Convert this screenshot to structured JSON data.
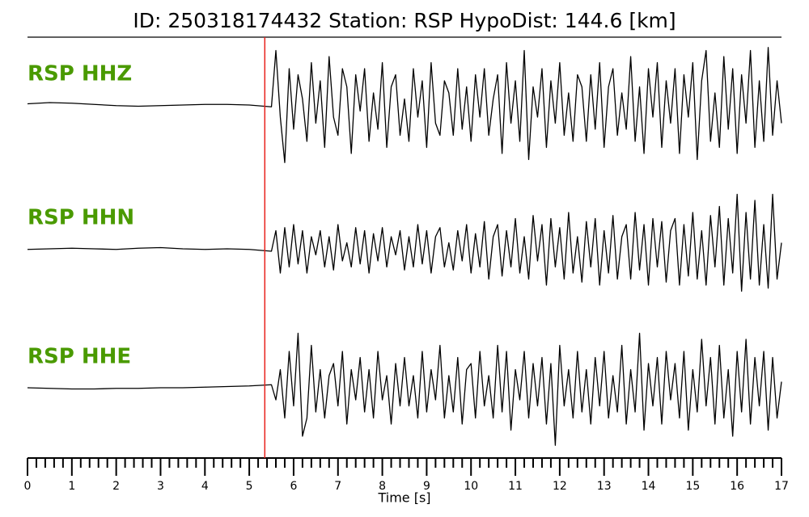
{
  "chart_data": {
    "type": "line",
    "title": "ID: 250318174432   Station: RSP   HypoDist:   144.6 [km]",
    "x_label": "Time [s]",
    "xlim": [
      0,
      17
    ],
    "xticks": [
      0,
      1,
      2,
      3,
      4,
      5,
      6,
      7,
      8,
      9,
      10,
      11,
      12,
      13,
      14,
      15,
      16,
      17
    ],
    "xminorticks": [
      0.2,
      0.4,
      0.6,
      0.8,
      1.2,
      1.4,
      1.6,
      1.8,
      2.2,
      2.4,
      2.6,
      2.8,
      3.2,
      3.4,
      3.6,
      3.8,
      4.2,
      4.4,
      4.6,
      4.8,
      5.2,
      5.4,
      5.6,
      5.8,
      6.2,
      6.4,
      6.6,
      6.8,
      7.2,
      7.4,
      7.6,
      7.8,
      8.2,
      8.4,
      8.6,
      8.8,
      9.2,
      9.4,
      9.6,
      9.8,
      10.2,
      10.4,
      10.6,
      10.8,
      11.2,
      11.4,
      11.6,
      11.8,
      12.2,
      12.4,
      12.6,
      12.8,
      13.2,
      13.4,
      13.6,
      13.8,
      14.2,
      14.4,
      14.6,
      14.8,
      15.2,
      15.4,
      15.6,
      15.8,
      16.2,
      16.4,
      16.6,
      16.8
    ],
    "ylim": [
      -1,
      1
    ],
    "marker": {
      "x": 5.35,
      "color": "#e8211c"
    },
    "x": [
      0,
      0.5,
      1,
      1.5,
      2,
      2.5,
      3,
      3.5,
      4,
      4.5,
      5,
      5.5,
      5.6,
      5.7,
      5.8,
      5.9,
      6.0,
      6.1,
      6.2,
      6.3,
      6.4,
      6.5,
      6.6,
      6.7,
      6.8,
      6.9,
      7.0,
      7.1,
      7.2,
      7.3,
      7.4,
      7.5,
      7.6,
      7.7,
      7.8,
      7.9,
      8.0,
      8.1,
      8.2,
      8.3,
      8.4,
      8.5,
      8.6,
      8.7,
      8.8,
      8.9,
      9.0,
      9.1,
      9.2,
      9.3,
      9.4,
      9.5,
      9.6,
      9.7,
      9.8,
      9.9,
      10.0,
      10.1,
      10.2,
      10.3,
      10.4,
      10.5,
      10.6,
      10.7,
      10.8,
      10.9,
      11.0,
      11.1,
      11.2,
      11.3,
      11.4,
      11.5,
      11.6,
      11.7,
      11.8,
      11.9,
      12.0,
      12.1,
      12.2,
      12.3,
      12.4,
      12.5,
      12.6,
      12.7,
      12.8,
      12.9,
      13.0,
      13.1,
      13.2,
      13.3,
      13.4,
      13.5,
      13.6,
      13.7,
      13.8,
      13.9,
      14.0,
      14.1,
      14.2,
      14.3,
      14.4,
      14.5,
      14.6,
      14.7,
      14.8,
      14.9,
      15.0,
      15.1,
      15.2,
      15.3,
      15.4,
      15.5,
      15.6,
      15.7,
      15.8,
      15.9,
      16.0,
      16.1,
      16.2,
      16.3,
      16.4,
      16.5,
      16.6,
      16.7,
      16.8,
      16.9,
      17.0
    ],
    "series": [
      {
        "name": "RSP HHZ",
        "color": "#000000",
        "label_color": "#4a9a00",
        "values": [
          0.02,
          0.04,
          0.03,
          0.01,
          -0.01,
          -0.02,
          -0.01,
          0.0,
          0.01,
          0.01,
          0.0,
          -0.03,
          0.9,
          -0.2,
          -0.95,
          0.6,
          -0.4,
          0.5,
          0.1,
          -0.6,
          0.7,
          -0.3,
          0.4,
          -0.7,
          0.8,
          -0.2,
          -0.5,
          0.6,
          0.3,
          -0.8,
          0.5,
          -0.1,
          0.6,
          -0.6,
          0.2,
          -0.4,
          0.7,
          -0.7,
          0.3,
          0.5,
          -0.5,
          0.1,
          -0.6,
          0.6,
          -0.2,
          0.4,
          -0.7,
          0.7,
          -0.3,
          -0.5,
          0.4,
          0.2,
          -0.5,
          0.6,
          -0.4,
          0.3,
          -0.6,
          0.5,
          -0.2,
          0.6,
          -0.5,
          0.1,
          0.5,
          -0.8,
          0.7,
          -0.3,
          0.4,
          -0.6,
          0.9,
          -0.9,
          0.3,
          -0.2,
          0.6,
          -0.7,
          0.4,
          -0.3,
          0.7,
          -0.5,
          0.2,
          -0.6,
          0.5,
          0.3,
          -0.6,
          0.5,
          -0.4,
          0.7,
          -0.7,
          0.3,
          0.6,
          -0.5,
          0.2,
          -0.4,
          0.8,
          -0.6,
          0.3,
          -0.8,
          0.6,
          -0.2,
          0.7,
          -0.7,
          0.4,
          -0.3,
          0.6,
          -0.8,
          0.5,
          -0.2,
          0.7,
          -0.9,
          0.4,
          0.9,
          -0.6,
          0.2,
          -0.7,
          0.8,
          -0.4,
          0.6,
          -0.8,
          0.5,
          -0.3,
          0.9,
          -0.7,
          0.4,
          -0.6,
          0.95,
          -0.5,
          0.4,
          -0.3
        ]
      },
      {
        "name": "RSP HHN",
        "color": "#000000",
        "label_color": "#4a9a00",
        "values": [
          -0.01,
          0.0,
          0.01,
          0.0,
          -0.01,
          0.01,
          0.02,
          0.0,
          -0.01,
          0.0,
          -0.01,
          -0.04,
          0.3,
          -0.4,
          0.35,
          -0.3,
          0.4,
          -0.25,
          0.3,
          -0.4,
          0.2,
          -0.1,
          0.3,
          -0.3,
          0.2,
          -0.35,
          0.4,
          -0.2,
          0.1,
          -0.3,
          0.35,
          -0.25,
          0.3,
          -0.4,
          0.25,
          -0.2,
          0.35,
          -0.3,
          0.2,
          -0.1,
          0.3,
          -0.35,
          0.2,
          -0.3,
          0.4,
          -0.25,
          0.3,
          -0.4,
          0.2,
          0.35,
          -0.3,
          0.1,
          -0.35,
          0.3,
          -0.2,
          0.4,
          -0.4,
          0.25,
          -0.3,
          0.45,
          -0.5,
          0.2,
          0.4,
          -0.45,
          0.3,
          -0.3,
          0.5,
          -0.4,
          0.2,
          -0.5,
          0.55,
          -0.2,
          0.4,
          -0.6,
          0.5,
          -0.3,
          0.35,
          -0.5,
          0.6,
          -0.4,
          0.2,
          -0.55,
          0.45,
          -0.3,
          0.5,
          -0.6,
          0.3,
          -0.4,
          0.55,
          -0.5,
          0.2,
          0.4,
          -0.5,
          0.6,
          -0.35,
          0.4,
          -0.6,
          0.5,
          -0.3,
          0.45,
          -0.55,
          0.3,
          0.5,
          -0.6,
          0.4,
          -0.45,
          0.6,
          -0.5,
          0.3,
          -0.6,
          0.55,
          -0.3,
          0.7,
          -0.6,
          0.5,
          -0.4,
          0.9,
          -0.7,
          0.6,
          -0.5,
          0.8,
          -0.6,
          0.4,
          -0.65,
          0.9,
          -0.5,
          0.1
        ]
      },
      {
        "name": "RSP HHE",
        "color": "#000000",
        "label_color": "#4a9a00",
        "values": [
          0.0,
          -0.01,
          -0.02,
          -0.02,
          -0.01,
          -0.01,
          0.0,
          0.0,
          0.01,
          0.02,
          0.03,
          0.05,
          -0.2,
          0.3,
          -0.5,
          0.6,
          -0.3,
          0.9,
          -0.8,
          -0.5,
          0.7,
          -0.4,
          0.3,
          -0.5,
          0.2,
          0.4,
          -0.3,
          0.6,
          -0.6,
          0.3,
          -0.2,
          0.5,
          -0.4,
          0.3,
          -0.5,
          0.6,
          -0.2,
          0.2,
          -0.6,
          0.4,
          -0.3,
          0.5,
          -0.3,
          0.2,
          -0.5,
          0.6,
          -0.4,
          0.3,
          -0.2,
          0.7,
          -0.5,
          0.2,
          -0.4,
          0.5,
          -0.6,
          0.3,
          0.4,
          -0.5,
          0.6,
          -0.3,
          0.2,
          -0.5,
          0.7,
          -0.4,
          0.6,
          -0.7,
          0.3,
          -0.2,
          0.6,
          -0.5,
          0.4,
          -0.3,
          0.5,
          -0.6,
          0.4,
          -0.95,
          0.7,
          -0.3,
          0.3,
          -0.5,
          0.6,
          -0.4,
          0.3,
          -0.6,
          0.5,
          -0.3,
          0.6,
          -0.5,
          0.2,
          -0.4,
          0.7,
          -0.6,
          0.3,
          -0.4,
          0.9,
          -0.7,
          0.4,
          -0.3,
          0.5,
          -0.6,
          0.6,
          -0.2,
          0.4,
          -0.5,
          0.6,
          -0.7,
          0.3,
          -0.4,
          0.8,
          -0.3,
          0.5,
          -0.6,
          0.7,
          -0.5,
          0.3,
          -0.8,
          0.6,
          -0.4,
          0.8,
          -0.6,
          0.5,
          -0.3,
          0.6,
          -0.7,
          0.5,
          -0.5,
          0.1
        ]
      }
    ]
  }
}
